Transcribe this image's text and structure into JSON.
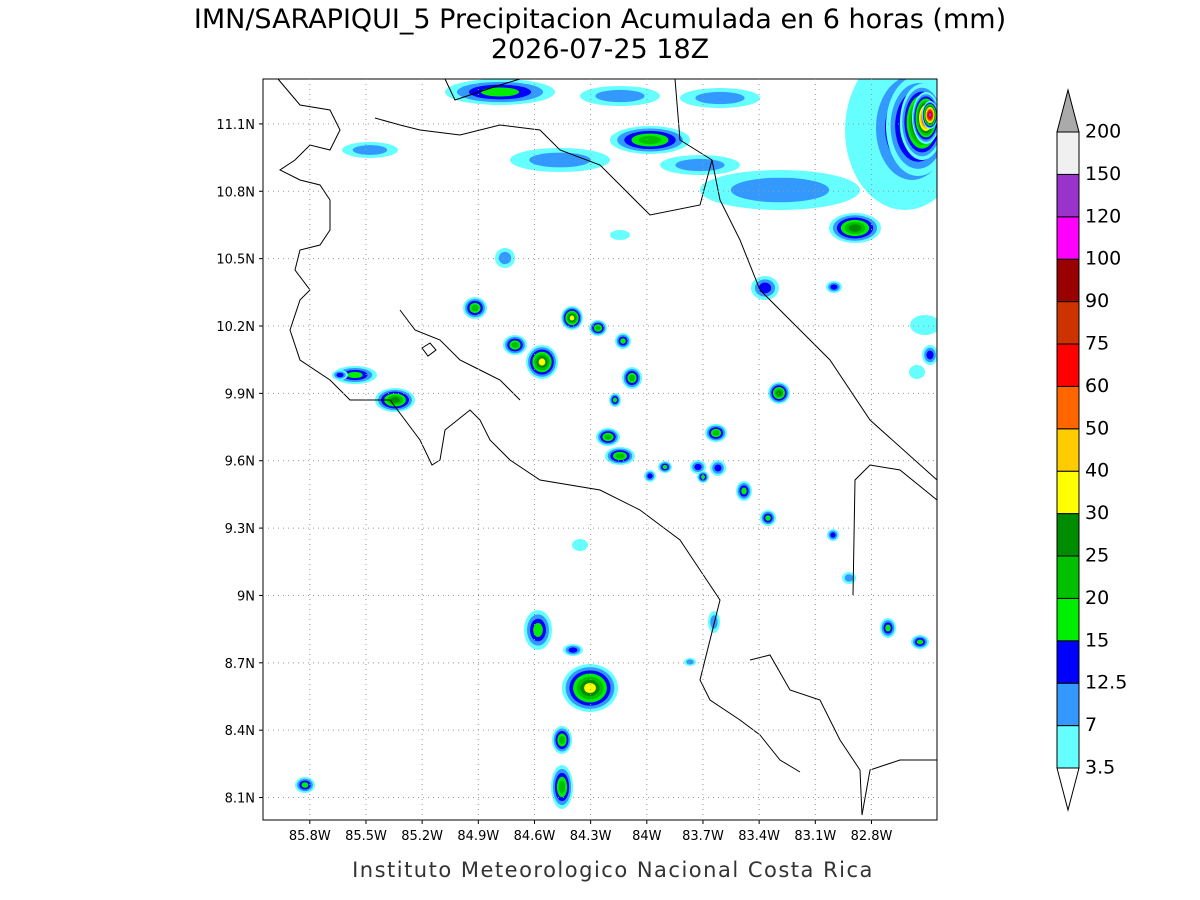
{
  "header": {
    "title": "IMN/SARAPIQUI_5 Precipitacion Acumulada en 6 horas (mm)",
    "subtitle": "2026-07-25 18Z"
  },
  "map": {
    "lon_range": [
      -86.05,
      -82.45
    ],
    "lat_range": [
      8.0,
      11.3
    ],
    "lon_ticks": [
      {
        "value": -85.8,
        "label": "85.8W"
      },
      {
        "value": -85.5,
        "label": "85.5W"
      },
      {
        "value": -85.2,
        "label": "85.2W"
      },
      {
        "value": -84.9,
        "label": "84.9W"
      },
      {
        "value": -84.6,
        "label": "84.6W"
      },
      {
        "value": -84.3,
        "label": "84.3W"
      },
      {
        "value": -84.0,
        "label": "84W"
      },
      {
        "value": -83.7,
        "label": "83.7W"
      },
      {
        "value": -83.4,
        "label": "83.4W"
      },
      {
        "value": -83.1,
        "label": "83.1W"
      },
      {
        "value": -82.8,
        "label": "82.8W"
      }
    ],
    "lat_ticks": [
      {
        "value": 11.1,
        "label": "11.1N"
      },
      {
        "value": 10.8,
        "label": "10.8N"
      },
      {
        "value": 10.5,
        "label": "10.5N"
      },
      {
        "value": 10.2,
        "label": "10.2N"
      },
      {
        "value": 9.9,
        "label": "9.9N"
      },
      {
        "value": 9.6,
        "label": "9.6N"
      },
      {
        "value": 9.3,
        "label": "9.3N"
      },
      {
        "value": 9.0,
        "label": "9N"
      },
      {
        "value": 8.7,
        "label": "8.7N"
      },
      {
        "value": 8.4,
        "label": "8.4N"
      },
      {
        "value": 8.1,
        "label": "8.1N"
      }
    ],
    "grid": true
  },
  "colorbar": {
    "levels": [
      3.5,
      7,
      12.5,
      15,
      20,
      25,
      30,
      40,
      50,
      60,
      75,
      90,
      100,
      120,
      150,
      200
    ],
    "colors": [
      "#ffffff",
      "#66ffff",
      "#3399ff",
      "#0000ff",
      "#00ee00",
      "#00c000",
      "#008c00",
      "#ffff00",
      "#ffcc00",
      "#ff6600",
      "#ff0000",
      "#cc3300",
      "#990000",
      "#ff00ff",
      "#9933cc",
      "#f0f0f0",
      "#aaaaaa"
    ]
  },
  "footer": "Instituto Meteorologico Nacional Costa Rica"
}
